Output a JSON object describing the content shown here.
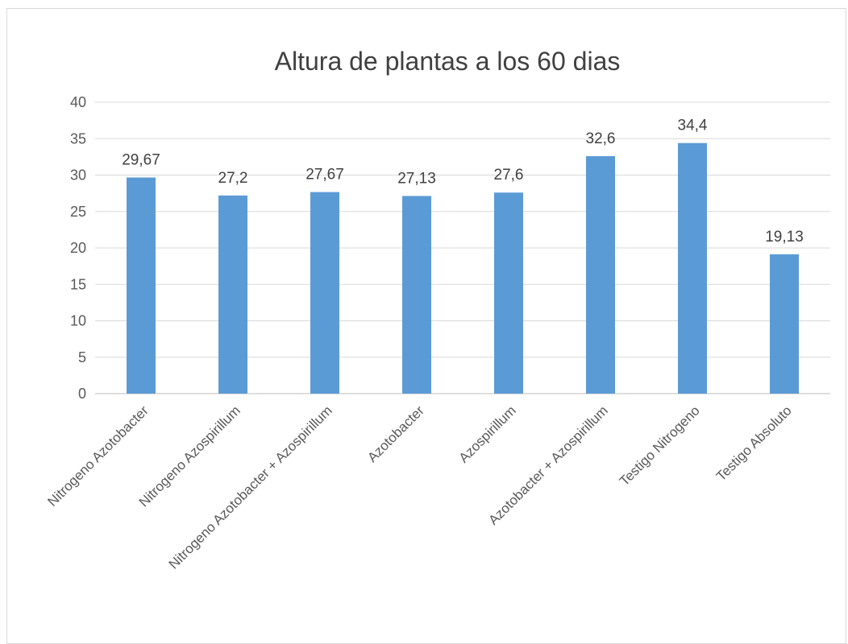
{
  "chart_data": {
    "type": "bar",
    "title": "Altura de plantas a los 60 dias",
    "categories": [
      "Nitrogeno Azotobacter",
      "Nitrogeno Azospirillum",
      "Nitrogeno Azotobacter + Azospirillum",
      "Azotobacter",
      "Azospirillum",
      "Azotobacter + Azospirillum",
      "Testigo Nitrogeno",
      "Testigo Absoluto"
    ],
    "values": [
      29.67,
      27.2,
      27.67,
      27.13,
      27.6,
      32.6,
      34.4,
      19.13
    ],
    "data_labels": [
      "29,67",
      "27,2",
      "27,67",
      "27,13",
      "27,6",
      "32,6",
      "34,4",
      "19,13"
    ],
    "yticks": [
      "0",
      "5",
      "10",
      "15",
      "20",
      "25",
      "30",
      "35",
      "40"
    ],
    "ylim": [
      0,
      40
    ],
    "grid": true,
    "bar_color": "#5b9bd5"
  }
}
